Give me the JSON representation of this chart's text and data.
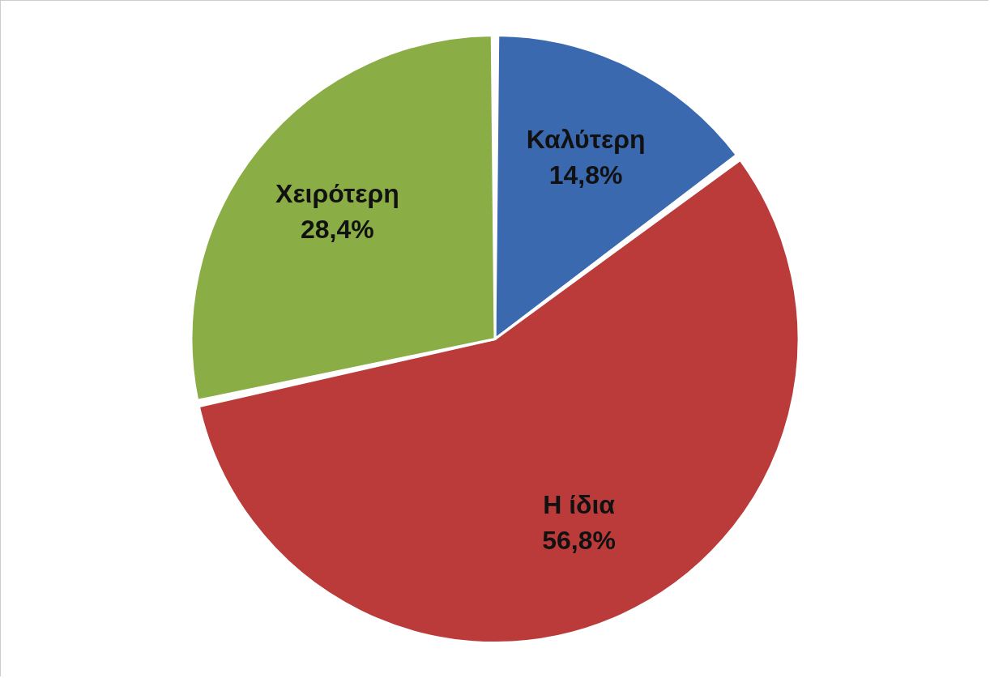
{
  "chart_data": {
    "type": "pie",
    "categories": [
      "Καλύτερη",
      "Η ίδια",
      "Χειρότερη"
    ],
    "values": [
      14.8,
      56.8,
      28.4
    ],
    "value_labels": [
      "14,8%",
      "56,8%",
      "28,4%"
    ],
    "colors": [
      "#3a69b0",
      "#bb3b3b",
      "#8aae45"
    ]
  }
}
